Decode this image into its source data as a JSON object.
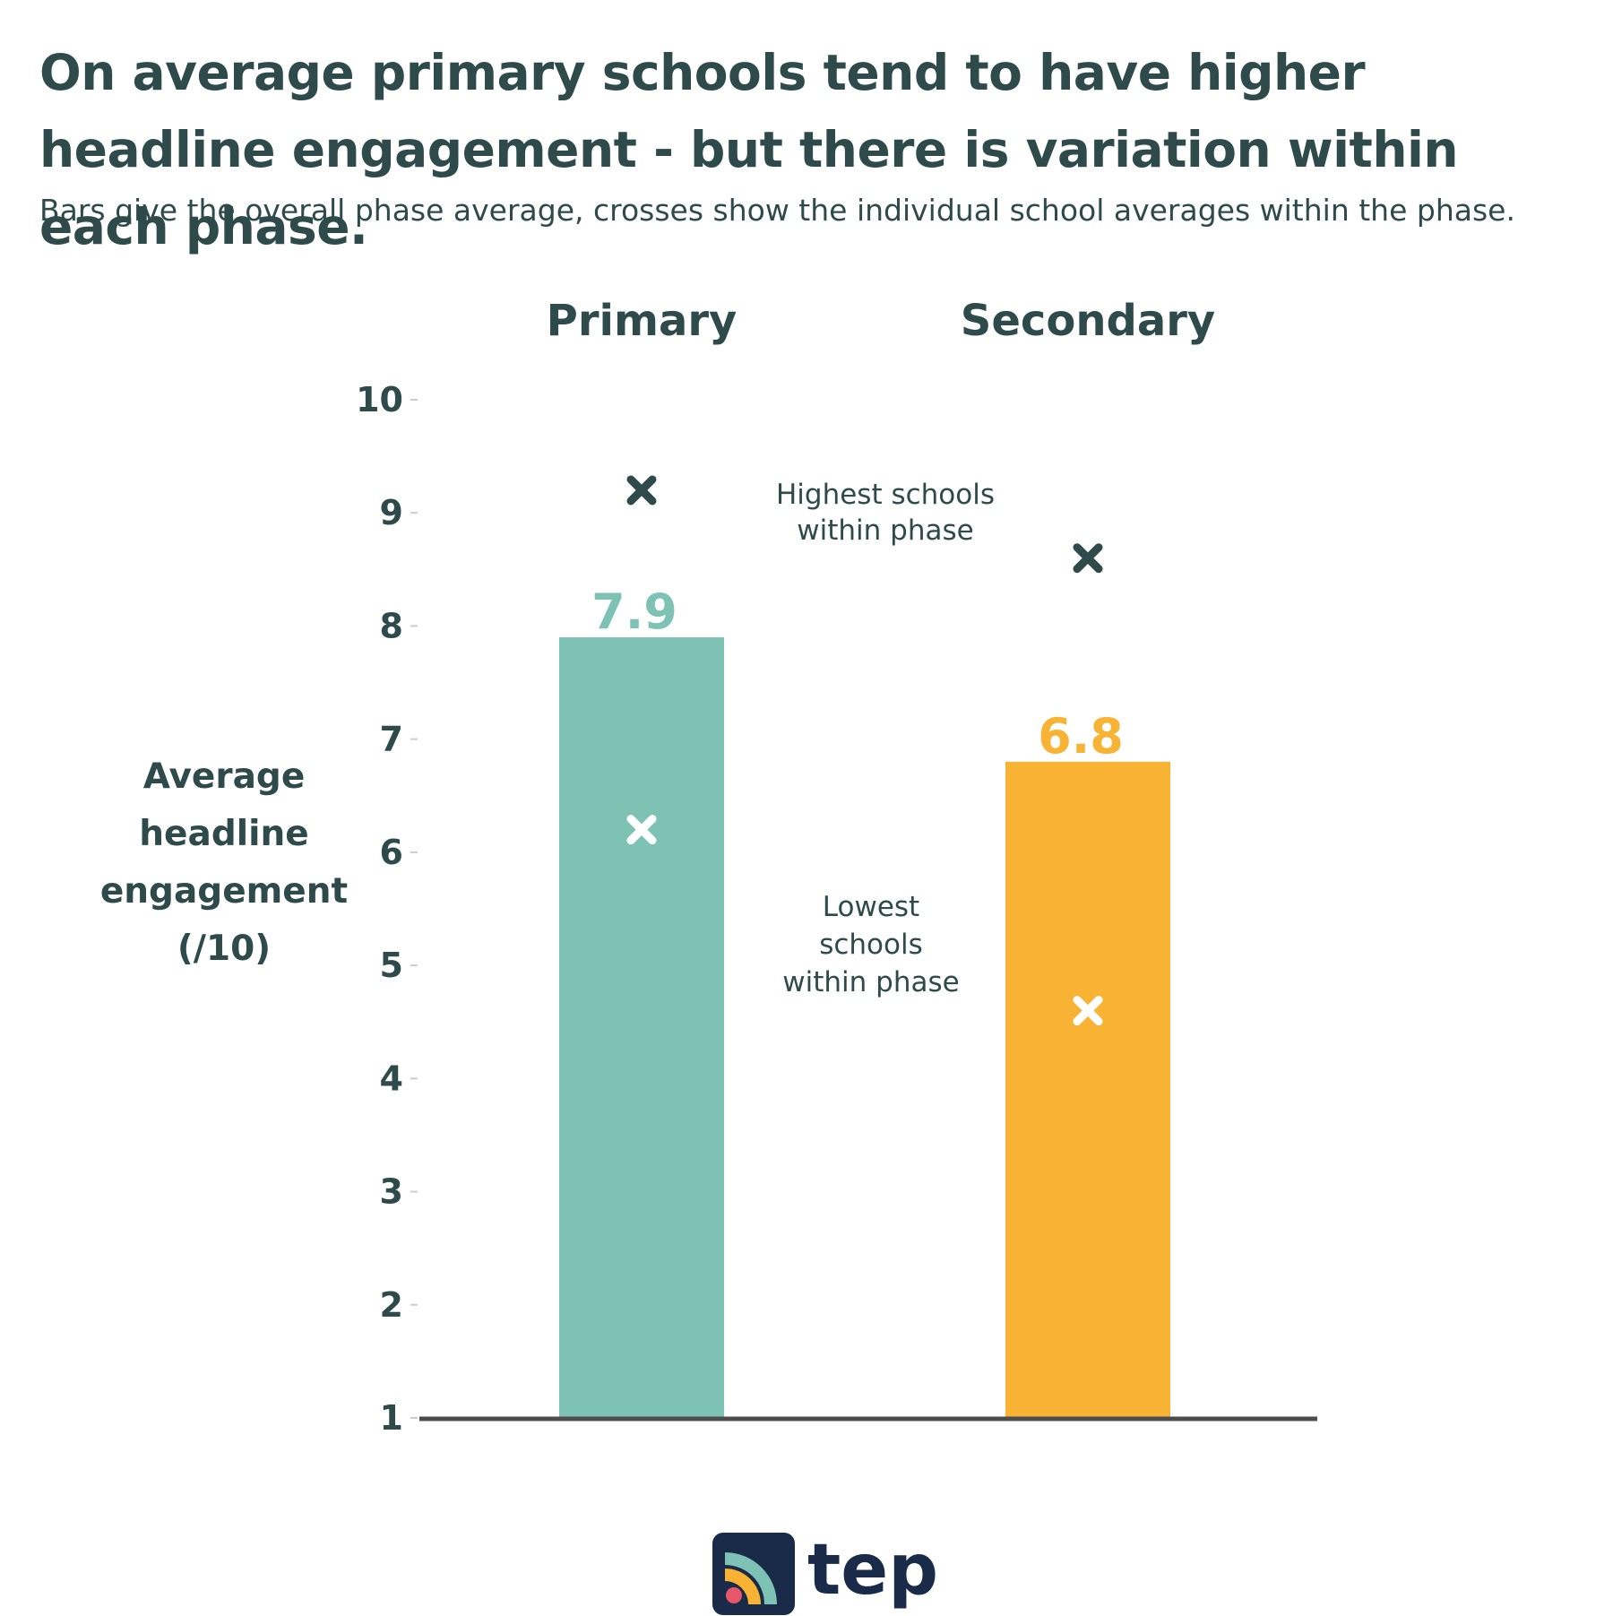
{
  "title": "On average primary schools tend to have higher headline engagement - but there is variation within each phase.",
  "subtitle": "Bars give the overall phase average, crosses show the individual school averages within the phase.",
  "chart_data": {
    "type": "bar",
    "categories": [
      "Primary",
      "Secondary"
    ],
    "values": [
      7.9,
      6.8
    ],
    "value_labels": [
      "7.9",
      "6.8"
    ],
    "bar_colors": [
      "#7dc2b4",
      "#f8b335"
    ],
    "highest_school": [
      9.2,
      8.6
    ],
    "lowest_school": [
      6.2,
      4.6
    ],
    "ylabel": "Average headline engagement (/10)",
    "ylim": [
      1,
      10
    ],
    "yticks": [
      "1",
      "2",
      "3",
      "4",
      "5",
      "6",
      "7",
      "8",
      "9",
      "10"
    ],
    "grid": false,
    "annotations": {
      "highest": "Highest schools within phase",
      "lowest": "Lowest schools within phase"
    },
    "marker_colors": {
      "highest": "#2f4a4a",
      "lowest": "#ffffff"
    },
    "text_color": "#2f4a4a",
    "axis_color": "#4d4d4d"
  },
  "logo": {
    "text": "tep",
    "colors": {
      "background": "#1a2b49",
      "ring_teal": "#7dc2b4",
      "ring_yellow": "#f8b335",
      "dot_pink": "#e8566c"
    }
  }
}
